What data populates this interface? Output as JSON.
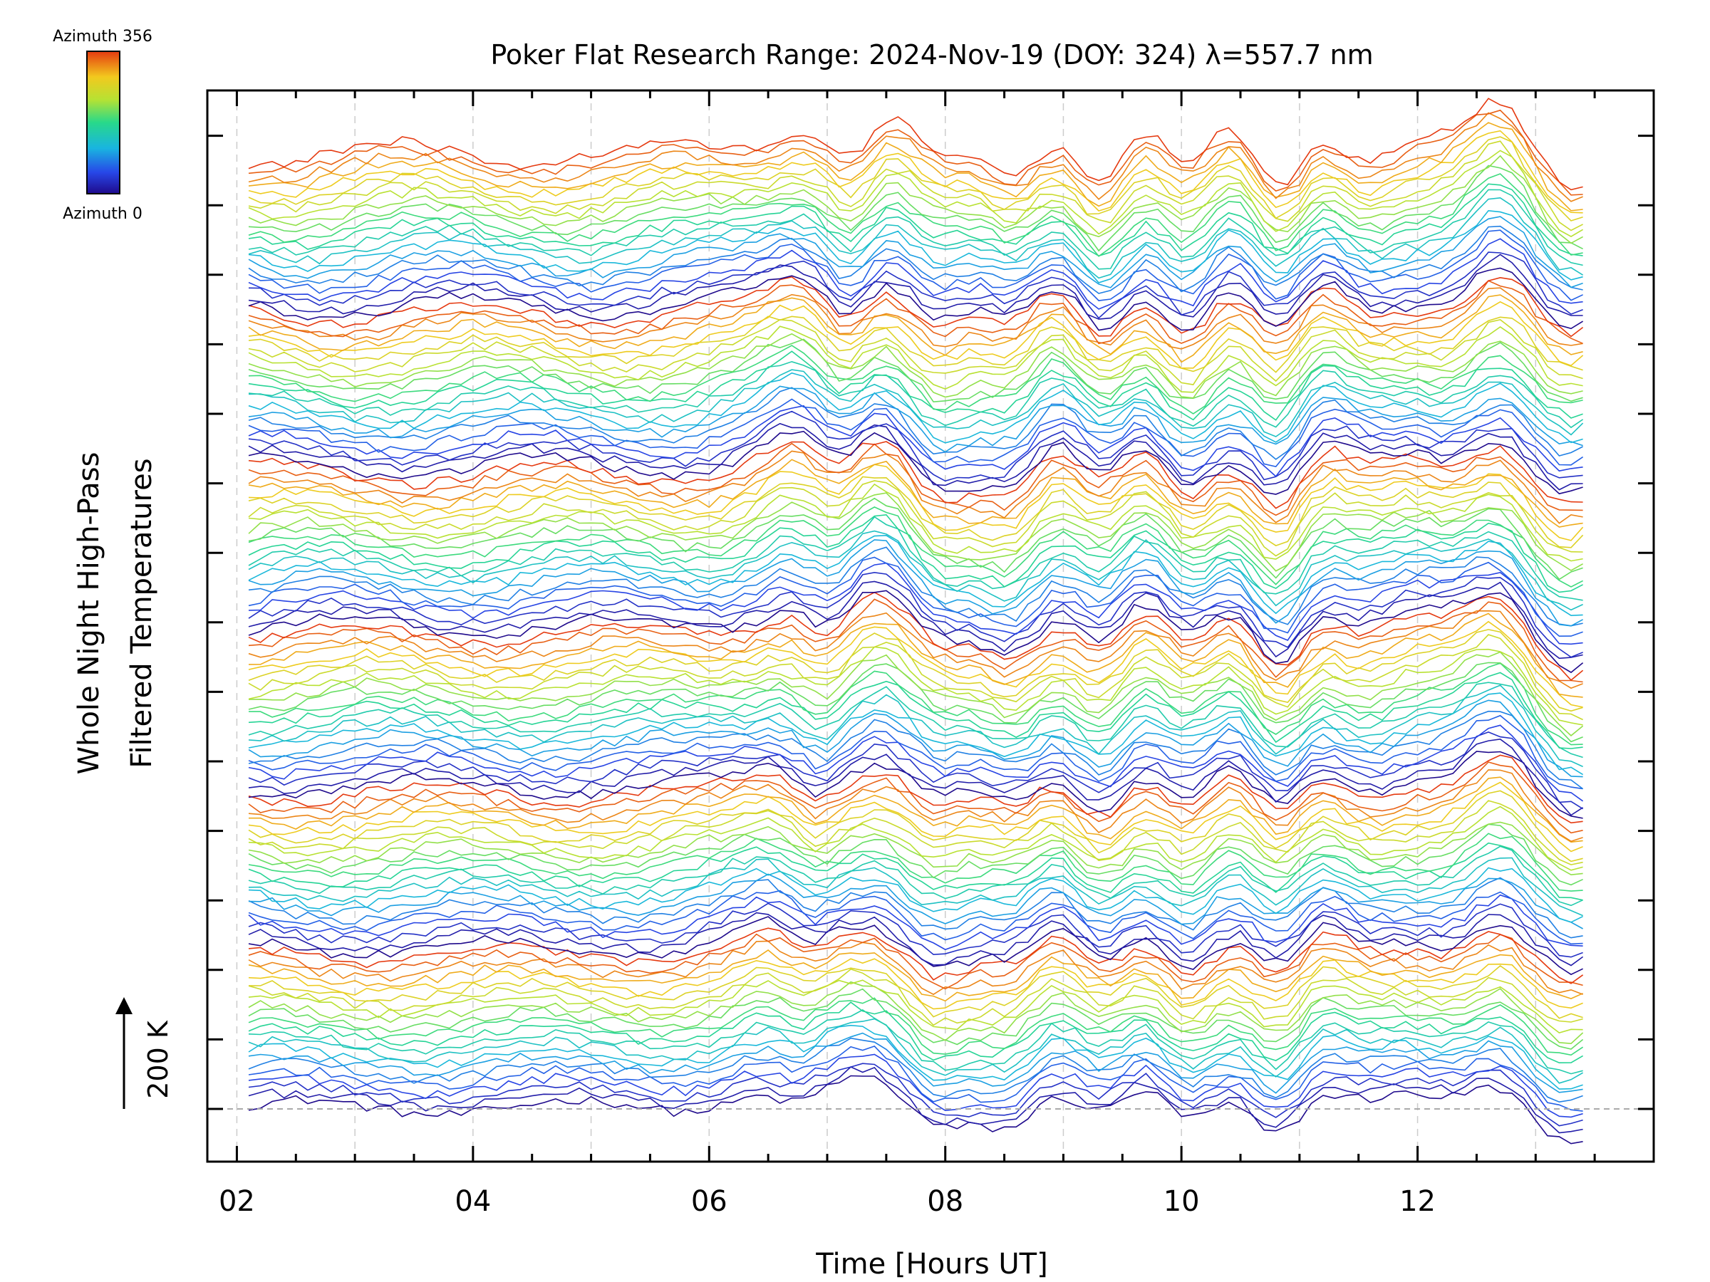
{
  "chart_data": {
    "type": "line",
    "title": "Poker Flat Research Range: 2024-Nov-19 (DOY: 324) λ=557.7 nm",
    "xlabel": "Time [Hours UT]",
    "ylabel_line1": "Whole Night High-Pass",
    "ylabel_line2": "Filtered Temperatures",
    "scale_label": "200 K",
    "x_tick_labels": [
      "02",
      "04",
      "06",
      "08",
      "10",
      "12"
    ],
    "x_ticks": [
      2,
      4,
      6,
      8,
      10,
      12
    ],
    "xlim": [
      1.75,
      14.0
    ],
    "x_range": [
      2.1,
      13.4
    ],
    "grid": "dashed vertical lines at each hour",
    "colorbar": {
      "top_label": "Azimuth 356",
      "bottom_label": "Azimuth 0",
      "colormap": "rainbow (blue-violet at 0 to red at 356)"
    },
    "stack": {
      "groups": 6,
      "traces_per_group": 22,
      "azimuth_min": 0,
      "azimuth_max": 356
    },
    "colors": {
      "axis": "#000000",
      "grid": "#cccccc",
      "low_azimuth": "#1f0a8c",
      "high_azimuth": "#e53a10"
    }
  }
}
